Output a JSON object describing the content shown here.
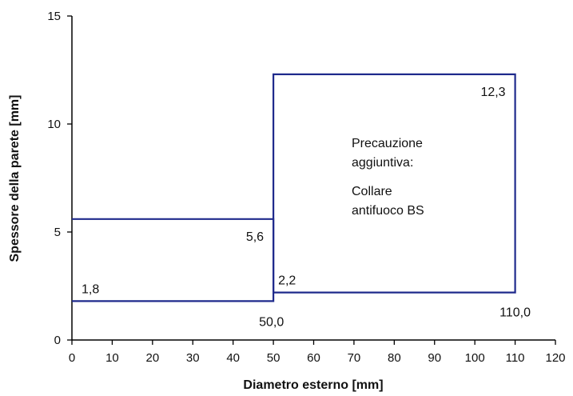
{
  "chart_data": {
    "type": "line",
    "title": "",
    "xlabel": "Diametro esterno [mm]",
    "ylabel": "Spessore della parete [mm]",
    "xlim": [
      0,
      120
    ],
    "ylim": [
      0,
      15
    ],
    "x_ticks": [
      "0",
      "10",
      "20",
      "30",
      "40",
      "50",
      "60",
      "70",
      "80",
      "90",
      "100",
      "110",
      "120"
    ],
    "y_ticks": [
      "0",
      "5",
      "10",
      "15"
    ],
    "grid": false,
    "legend": "none",
    "series_color": "#1f2a8c",
    "series": [
      {
        "points": [
          [
            0,
            1.8
          ],
          [
            50,
            1.8
          ],
          [
            50,
            5.6
          ],
          [
            0,
            5.6
          ]
        ]
      },
      {
        "points": [
          [
            50,
            2.2
          ],
          [
            110,
            2.2
          ],
          [
            110,
            12.3
          ],
          [
            50,
            12.3
          ],
          [
            50,
            2.2
          ]
        ]
      }
    ],
    "data_labels": [
      {
        "text": "1,8",
        "x": 0,
        "y": 1.8
      },
      {
        "text": "5,6",
        "x": 50,
        "y": 5.6
      },
      {
        "text": "50,0",
        "x": 50,
        "y": 1.8
      },
      {
        "text": "2,2",
        "x": 50,
        "y": 2.2
      },
      {
        "text": "12,3",
        "x": 110,
        "y": 12.3
      },
      {
        "text": "110,0",
        "x": 110,
        "y": 2.2
      }
    ],
    "annotation_lines": [
      "Precauzione",
      "aggiuntiva:",
      "Collare",
      "antifuoco BS"
    ]
  }
}
